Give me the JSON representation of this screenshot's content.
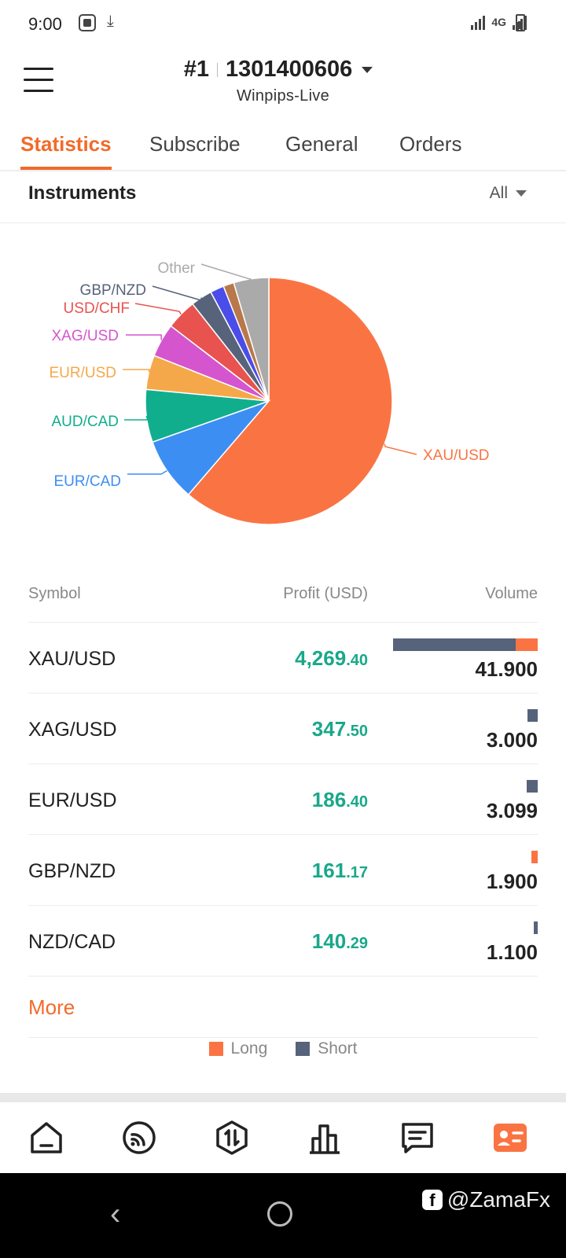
{
  "status_bar": {
    "time": "9:00",
    "network": "4G"
  },
  "header": {
    "account_no": "#1",
    "account_id": "1301400606",
    "server": "Winpips-Live"
  },
  "tabs": [
    {
      "label": "Statistics",
      "active": true
    },
    {
      "label": "Subscribe",
      "active": false
    },
    {
      "label": "General",
      "active": false
    },
    {
      "label": "Orders",
      "active": false
    }
  ],
  "instruments": {
    "title": "Instruments",
    "filter": "All"
  },
  "chart_data": {
    "type": "pie",
    "slices": [
      {
        "label": "XAU/USD",
        "percent": 61.3,
        "color": "#fa7443"
      },
      {
        "label": "EUR/CAD",
        "percent": 8.3,
        "color": "#3d8ef2"
      },
      {
        "label": "AUD/CAD",
        "percent": 6.9,
        "color": "#11ae8e"
      },
      {
        "label": "EUR/USD",
        "percent": 4.5,
        "color": "#f5a84a"
      },
      {
        "label": "XAG/USD",
        "percent": 4.4,
        "color": "#d555cf"
      },
      {
        "label": "USD/CHF",
        "percent": 4.0,
        "color": "#e8534f"
      },
      {
        "label": "GBP/NZD",
        "percent": 2.8,
        "color": "#56637a"
      },
      {
        "label": "",
        "percent": 1.8,
        "color": "#4a4de8"
      },
      {
        "label": "",
        "percent": 1.4,
        "color": "#b9784a"
      },
      {
        "label": "Other",
        "percent": 4.6,
        "color": "#aaaaaa"
      }
    ]
  },
  "table": {
    "headers": {
      "symbol": "Symbol",
      "profit": "Profit (USD)",
      "volume": "Volume"
    },
    "rows": [
      {
        "symbol": "XAU/USD",
        "profit_int": "4,269",
        "profit_dec": ".40",
        "volume": "41.900",
        "short_frac": 0.85,
        "long_frac": 0.15,
        "bar_scale": 1.0
      },
      {
        "symbol": "XAG/USD",
        "profit_int": "347",
        "profit_dec": ".50",
        "volume": "3.000",
        "short_frac": 1.0,
        "long_frac": 0.0,
        "bar_scale": 0.072
      },
      {
        "symbol": "EUR/USD",
        "profit_int": "186",
        "profit_dec": ".40",
        "volume": "3.099",
        "short_frac": 1.0,
        "long_frac": 0.0,
        "bar_scale": 0.074
      },
      {
        "symbol": "GBP/NZD",
        "profit_int": "161",
        "profit_dec": ".17",
        "volume": "1.900",
        "short_frac": 0.0,
        "long_frac": 1.0,
        "bar_scale": 0.045
      },
      {
        "symbol": "NZD/CAD",
        "profit_int": "140",
        "profit_dec": ".29",
        "volume": "1.100",
        "short_frac": 1.0,
        "long_frac": 0.0,
        "bar_scale": 0.026
      }
    ],
    "more_label": "More"
  },
  "legend": {
    "long": "Long",
    "short": "Short",
    "long_color": "#fa7443",
    "short_color": "#56637a"
  },
  "bottom_nav": [
    {
      "icon": "home-icon"
    },
    {
      "icon": "signal-feed-icon"
    },
    {
      "icon": "trade-icon"
    },
    {
      "icon": "chart-bars-icon"
    },
    {
      "icon": "message-icon"
    },
    {
      "icon": "profile-card-icon",
      "active": true
    }
  ],
  "watermark": "@ZamaFx"
}
